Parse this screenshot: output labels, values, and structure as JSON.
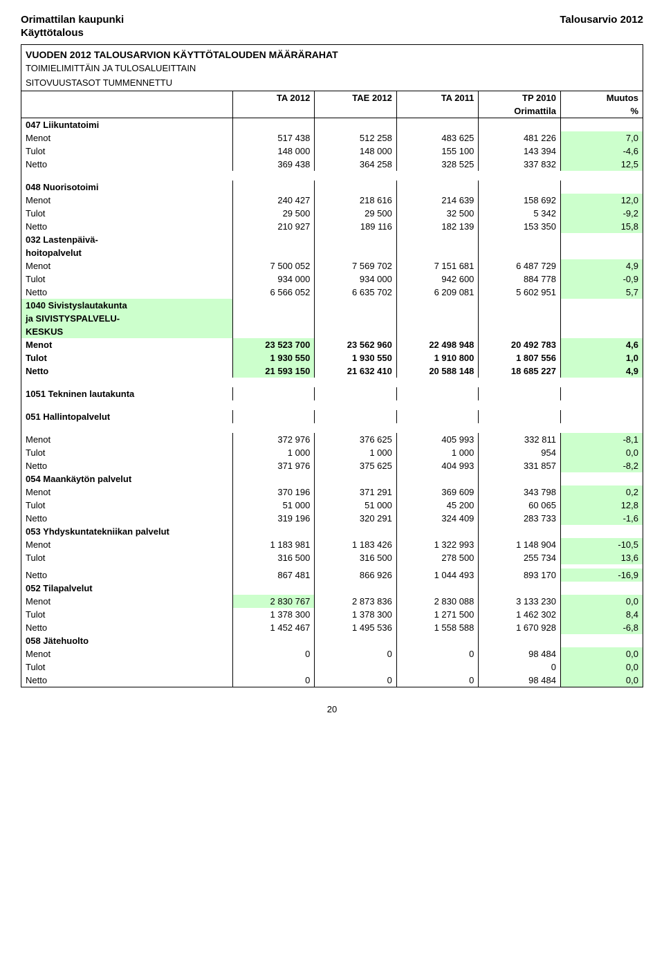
{
  "header": {
    "left_line1": "Orimattilan kaupunki",
    "left_line2": "Käyttötalous",
    "right": "Talousarvio 2012"
  },
  "title": "VUODEN 2012 TALOUSARVION KÄYTTÖTALOUDEN MÄÄRÄRAHAT",
  "subtitle1": "TOIMIELIMITTÄIN JA TULOSALUEITTAIN",
  "subtitle2": "SITOVUUSTASOT TUMMENNETTU",
  "col_headers": {
    "c1": "TA 2012",
    "c2": "TAE 2012",
    "c3": "TA 2011",
    "c4a": "TP 2010",
    "c4b": "Orimattila",
    "c5a": "Muutos",
    "c5b": "%"
  },
  "rows": [
    {
      "type": "section",
      "label": "047  Liikuntatoimi"
    },
    {
      "type": "data",
      "label": "Menot",
      "v": [
        "517 438",
        "512 258",
        "483 625",
        "481 226",
        "7,0"
      ],
      "hl": [
        4
      ]
    },
    {
      "type": "data",
      "label": "Tulot",
      "v": [
        "148 000",
        "148 000",
        "155 100",
        "143 394",
        "-4,6"
      ],
      "hl": [
        4
      ]
    },
    {
      "type": "data",
      "label": "Netto",
      "v": [
        "369 438",
        "364 258",
        "328 525",
        "337 832",
        "12,5"
      ],
      "hl": [
        4
      ]
    },
    {
      "type": "spacer"
    },
    {
      "type": "section",
      "label": "048 Nuorisotoimi"
    },
    {
      "type": "data",
      "label": "Menot",
      "v": [
        "240 427",
        "218 616",
        "214 639",
        "158 692",
        "12,0"
      ],
      "hl": [
        4
      ]
    },
    {
      "type": "data",
      "label": "Tulot",
      "v": [
        "29 500",
        "29 500",
        "32 500",
        "5 342",
        "-9,2"
      ],
      "hl": [
        4
      ]
    },
    {
      "type": "data",
      "label": "Netto",
      "v": [
        "210 927",
        "189 116",
        "182 139",
        "153 350",
        "15,8"
      ],
      "hl": [
        4
      ]
    },
    {
      "type": "section",
      "label": "032  Lastenpäivä-"
    },
    {
      "type": "section",
      "label": "hoitopalvelut"
    },
    {
      "type": "data",
      "label": "Menot",
      "v": [
        "7 500 052",
        "7 569 702",
        "7 151 681",
        "6 487 729",
        "4,9"
      ],
      "hl": [
        4
      ]
    },
    {
      "type": "data",
      "label": "Tulot",
      "v": [
        "934 000",
        "934 000",
        "942 600",
        "884 778",
        "-0,9"
      ],
      "hl": [
        4
      ]
    },
    {
      "type": "data",
      "label": "Netto",
      "v": [
        "6 566 052",
        "6 635 702",
        "6 209 081",
        "5 602 951",
        "5,7"
      ],
      "hl": [
        4
      ]
    },
    {
      "type": "section",
      "label": "1040 Sivistyslautakunta",
      "hlLabel": true
    },
    {
      "type": "section",
      "label": "ja SIVISTYSPALVELU-",
      "hlLabel": true
    },
    {
      "type": "section",
      "label": "KESKUS",
      "hlLabel": true
    },
    {
      "type": "data",
      "label": "Menot",
      "v": [
        "23 523 700",
        "23 562 960",
        "22 498 948",
        "20 492 783",
        "4,6"
      ],
      "hl": [
        0,
        4
      ],
      "b": true
    },
    {
      "type": "data",
      "label": "Tulot",
      "v": [
        "1 930 550",
        "1 930 550",
        "1 910 800",
        "1 807 556",
        "1,0"
      ],
      "hl": [
        0,
        4
      ],
      "b": true
    },
    {
      "type": "data",
      "label": "Netto",
      "v": [
        "21 593 150",
        "21 632 410",
        "20 588 148",
        "18 685 227",
        "4,9"
      ],
      "hl": [
        0,
        4
      ],
      "b": true
    },
    {
      "type": "spacer"
    },
    {
      "type": "section",
      "label": "1051 Tekninen lautakunta"
    },
    {
      "type": "spacer"
    },
    {
      "type": "section",
      "label": "051  Hallintopalvelut"
    },
    {
      "type": "spacer"
    },
    {
      "type": "data",
      "label": "Menot",
      "v": [
        "372 976",
        "376 625",
        "405 993",
        "332 811",
        "-8,1"
      ],
      "hl": [
        4
      ]
    },
    {
      "type": "data",
      "label": "Tulot",
      "v": [
        "1 000",
        "1 000",
        "1 000",
        "954",
        "0,0"
      ],
      "hl": [
        4
      ]
    },
    {
      "type": "data",
      "label": "Netto",
      "v": [
        "371 976",
        "375 625",
        "404 993",
        "331 857",
        "-8,2"
      ],
      "hl": [
        4
      ]
    },
    {
      "type": "section",
      "label": "054  Maankäytön palvelut"
    },
    {
      "type": "data",
      "label": "Menot",
      "v": [
        "370 196",
        "371 291",
        "369 609",
        "343 798",
        "0,2"
      ],
      "hl": [
        4
      ]
    },
    {
      "type": "data",
      "label": "Tulot",
      "v": [
        "51 000",
        "51 000",
        "45 200",
        "60 065",
        "12,8"
      ],
      "hl": [
        4
      ]
    },
    {
      "type": "data",
      "label": "Netto",
      "v": [
        "319 196",
        "320 291",
        "324 409",
        "283 733",
        "-1,6"
      ],
      "hl": [
        4
      ]
    },
    {
      "type": "section",
      "label": "053  Yhdyskuntatekniikan palvelut"
    },
    {
      "type": "data",
      "label": "Menot",
      "v": [
        "1 183 981",
        "1 183 426",
        "1 322 993",
        "1 148 904",
        "-10,5"
      ],
      "hl": [
        4
      ]
    },
    {
      "type": "data",
      "label": "Tulot",
      "v": [
        "316 500",
        "316 500",
        "278 500",
        "255 734",
        "13,6"
      ],
      "hl": [
        4
      ]
    },
    {
      "type": "gap"
    },
    {
      "type": "data",
      "label": "Netto",
      "v": [
        "867 481",
        "866 926",
        "1 044 493",
        "893 170",
        "-16,9"
      ],
      "hl": [
        4
      ]
    },
    {
      "type": "section",
      "label": "052 Tilapalvelut"
    },
    {
      "type": "data",
      "label": "Menot",
      "v": [
        "2 830 767",
        "2 873 836",
        "2 830 088",
        "3 133 230",
        "0,0"
      ],
      "hl": [
        0,
        4
      ]
    },
    {
      "type": "data",
      "label": "Tulot",
      "v": [
        "1 378 300",
        "1 378 300",
        "1 271 500",
        "1 462 302",
        "8,4"
      ],
      "hl": [
        4
      ]
    },
    {
      "type": "data",
      "label": "Netto",
      "v": [
        "1 452 467",
        "1 495 536",
        "1 558 588",
        "1 670 928",
        "-6,8"
      ],
      "hl": [
        4
      ]
    },
    {
      "type": "section",
      "label": "058 Jätehuolto"
    },
    {
      "type": "data",
      "label": "Menot",
      "v": [
        "0",
        "0",
        "0",
        "98 484",
        "0,0"
      ],
      "hl": [
        4
      ]
    },
    {
      "type": "data",
      "label": "Tulot",
      "v": [
        "",
        "",
        "",
        "0",
        "0,0"
      ],
      "hl": [
        4
      ]
    },
    {
      "type": "data",
      "label": "Netto",
      "v": [
        "0",
        "0",
        "0",
        "98 484",
        "0,0"
      ],
      "hl": [
        4
      ]
    }
  ],
  "page_number": "20",
  "colors": {
    "highlight": "#ccffcc",
    "border": "#000000",
    "text": "#000000",
    "background": "#ffffff"
  },
  "fonts": {
    "body_size": 13,
    "title_size": 14,
    "header_size": 15
  }
}
